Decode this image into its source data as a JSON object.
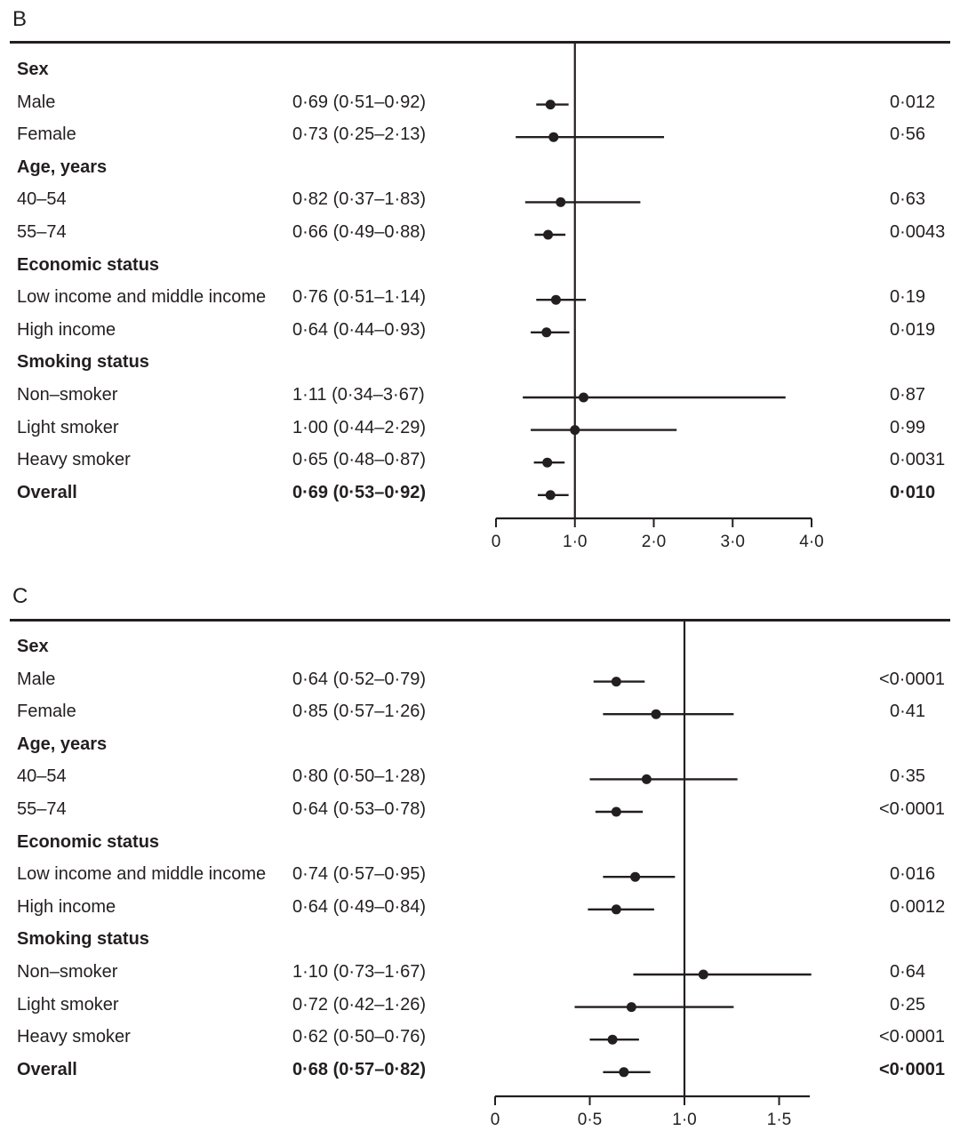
{
  "chart_data": [
    {
      "type": "forest",
      "panel": "B",
      "title": "B",
      "xlabel": "",
      "xlim": [
        0,
        4.0
      ],
      "ticks": [
        0,
        1.0,
        2.0,
        3.0,
        4.0
      ],
      "tick_labels": [
        "0",
        "1·0",
        "2·0",
        "3·0",
        "4·0"
      ],
      "reference_line": 1.0,
      "rows": [
        {
          "label": "Sex",
          "header": true
        },
        {
          "label": "Male",
          "estimate": 0.69,
          "lower": 0.51,
          "upper": 0.92,
          "text": "0·69 (0·51–0·92)",
          "p": "0·012"
        },
        {
          "label": "Female",
          "estimate": 0.73,
          "lower": 0.25,
          "upper": 2.13,
          "text": "0·73 (0·25–2·13)",
          "p": "0·56"
        },
        {
          "label": "Age, years",
          "header": true
        },
        {
          "label": "40–54",
          "estimate": 0.82,
          "lower": 0.37,
          "upper": 1.83,
          "text": "0·82 (0·37–1·83)",
          "p": "0·63"
        },
        {
          "label": "55–74",
          "estimate": 0.66,
          "lower": 0.49,
          "upper": 0.88,
          "text": "0·66 (0·49–0·88)",
          "p": "0·0043"
        },
        {
          "label": "Economic status",
          "header": true
        },
        {
          "label": "Low income and middle income",
          "estimate": 0.76,
          "lower": 0.51,
          "upper": 1.14,
          "text": "0·76 (0·51–1·14)",
          "p": "0·19"
        },
        {
          "label": "High income",
          "estimate": 0.64,
          "lower": 0.44,
          "upper": 0.93,
          "text": "0·64 (0·44–0·93)",
          "p": "0·019"
        },
        {
          "label": "Smoking status",
          "header": true
        },
        {
          "label": "Non–smoker",
          "estimate": 1.11,
          "lower": 0.34,
          "upper": 3.67,
          "text": "1·11 (0·34–3·67)",
          "p": "0·87"
        },
        {
          "label": "Light smoker",
          "estimate": 1.0,
          "lower": 0.44,
          "upper": 2.29,
          "text": "1·00 (0·44–2·29)",
          "p": "0·99"
        },
        {
          "label": "Heavy smoker",
          "estimate": 0.65,
          "lower": 0.48,
          "upper": 0.87,
          "text": "0·65 (0·48–0·87)",
          "p": "0·0031"
        },
        {
          "label": "Overall",
          "bold": true,
          "estimate": 0.69,
          "lower": 0.53,
          "upper": 0.92,
          "text": "0·69 (0·53–0·92)",
          "p": "0·010"
        }
      ]
    },
    {
      "type": "forest",
      "panel": "C",
      "title": "C",
      "xlabel": "",
      "xlim": [
        0,
        1.65
      ],
      "ticks": [
        0,
        0.5,
        1.0,
        1.5
      ],
      "tick_labels": [
        "0",
        "0·5",
        "1·0",
        "1·5"
      ],
      "reference_line": 1.0,
      "rows": [
        {
          "label": "Sex",
          "header": true
        },
        {
          "label": "Male",
          "estimate": 0.64,
          "lower": 0.52,
          "upper": 0.79,
          "text": "0·64 (0·52–0·79)",
          "p": "<0·0001"
        },
        {
          "label": "Female",
          "estimate": 0.85,
          "lower": 0.57,
          "upper": 1.26,
          "text": "0·85 (0·57–1·26)",
          "p": "0·41"
        },
        {
          "label": "Age, years",
          "header": true
        },
        {
          "label": "40–54",
          "estimate": 0.8,
          "lower": 0.5,
          "upper": 1.28,
          "text": "0·80 (0·50–1·28)",
          "p": "0·35"
        },
        {
          "label": "55–74",
          "estimate": 0.64,
          "lower": 0.53,
          "upper": 0.78,
          "text": "0·64 (0·53–0·78)",
          "p": "<0·0001"
        },
        {
          "label": "Economic status",
          "header": true
        },
        {
          "label": "Low income and middle income",
          "estimate": 0.74,
          "lower": 0.57,
          "upper": 0.95,
          "text": "0·74 (0·57–0·95)",
          "p": "0·016"
        },
        {
          "label": "High income",
          "estimate": 0.64,
          "lower": 0.49,
          "upper": 0.84,
          "text": "0·64 (0·49–0·84)",
          "p": "0·0012"
        },
        {
          "label": "Smoking status",
          "header": true
        },
        {
          "label": "Non–smoker",
          "estimate": 1.1,
          "lower": 0.73,
          "upper": 1.67,
          "text": "1·10 (0·73–1·67)",
          "p": "0·64"
        },
        {
          "label": "Light smoker",
          "estimate": 0.72,
          "lower": 0.42,
          "upper": 1.26,
          "text": "0·72 (0·42–1·26)",
          "p": "0·25"
        },
        {
          "label": "Heavy smoker",
          "estimate": 0.62,
          "lower": 0.5,
          "upper": 0.76,
          "text": "0·62 (0·50–0·76)",
          "p": "<0·0001"
        },
        {
          "label": "Overall",
          "bold": true,
          "estimate": 0.68,
          "lower": 0.57,
          "upper": 0.82,
          "text": "0·68 (0·57–0·82)",
          "p": "<0·0001"
        }
      ]
    }
  ]
}
